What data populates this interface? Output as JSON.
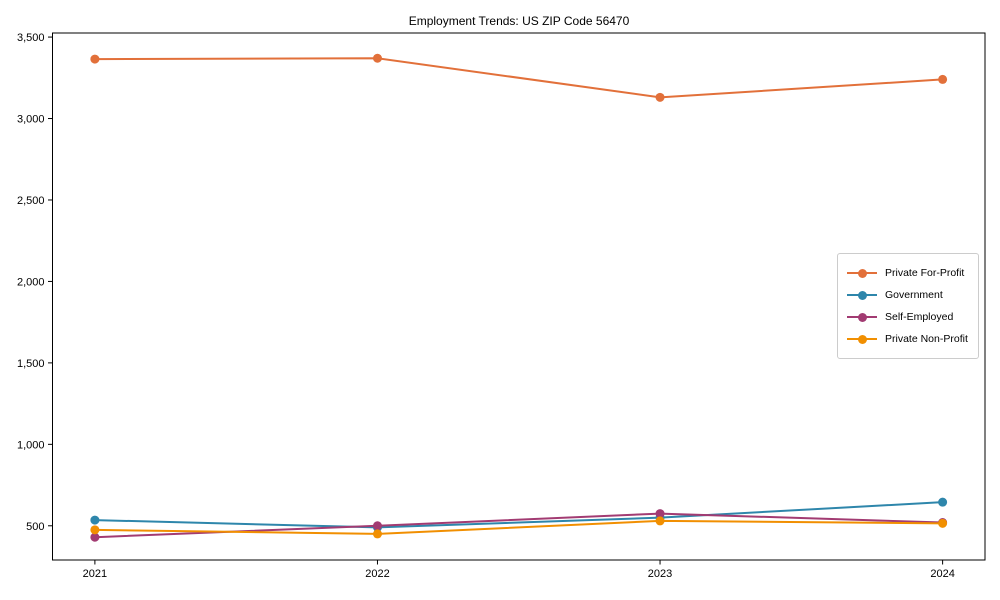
{
  "chart_data": {
    "type": "line",
    "title": "Employment Trends: US ZIP Code 56470",
    "x": [
      2021,
      2022,
      2023,
      2024
    ],
    "x_tick_labels": [
      "2021",
      "2022",
      "2023",
      "2024"
    ],
    "series": [
      {
        "name": "Private For-Profit",
        "color": "#E2703A",
        "values": [
          3365,
          3370,
          3130,
          3240
        ]
      },
      {
        "name": "Government",
        "color": "#2E86AB",
        "values": [
          535,
          490,
          550,
          645
        ]
      },
      {
        "name": "Self-Employed",
        "color": "#A23B72",
        "values": [
          430,
          500,
          575,
          520
        ]
      },
      {
        "name": "Private Non-Profit",
        "color": "#F18F01",
        "values": [
          475,
          450,
          530,
          515
        ]
      }
    ],
    "y_ticks": [
      {
        "value": 500,
        "label": "500"
      },
      {
        "value": 1000,
        "label": "1,000"
      },
      {
        "value": 1500,
        "label": "1,500"
      },
      {
        "value": 2000,
        "label": "2,000"
      },
      {
        "value": 2500,
        "label": "2,500"
      },
      {
        "value": 3000,
        "label": "3,000"
      },
      {
        "value": 3500,
        "label": "3,500"
      }
    ],
    "xlim": [
      2020.85,
      2024.15
    ],
    "ylim": [
      290,
      3525
    ],
    "grid": false,
    "legend_position": "center right",
    "xlabel": "",
    "ylabel": "",
    "marker": "circle",
    "line_width": 2,
    "marker_radius": 4.5,
    "axes_color": "#000000",
    "background_color": "#ffffff"
  }
}
